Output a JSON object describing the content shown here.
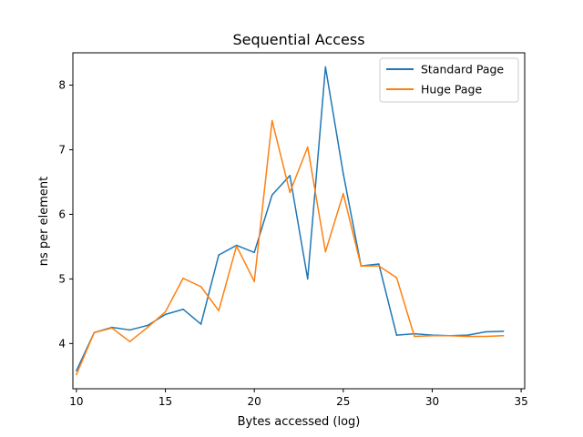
{
  "chart_data": {
    "type": "line",
    "title": "Sequential Access",
    "xlabel": "Bytes accessed (log)",
    "ylabel": "ns per element",
    "xlim": [
      9.8,
      35.2
    ],
    "ylim": [
      3.3,
      8.5
    ],
    "xticks": [
      10,
      15,
      20,
      25,
      30,
      35
    ],
    "yticks": [
      4,
      5,
      6,
      7,
      8
    ],
    "grid": false,
    "legend_position": "top-right",
    "x": [
      10,
      11,
      12,
      13,
      14,
      15,
      16,
      17,
      18,
      19,
      20,
      21,
      22,
      23,
      24,
      25,
      26,
      27,
      28,
      29,
      30,
      31,
      32,
      33,
      34
    ],
    "series": [
      {
        "name": "Standard Page",
        "color": "#1f77b4",
        "values": [
          3.58,
          4.17,
          4.25,
          4.21,
          4.28,
          4.45,
          4.53,
          4.3,
          5.37,
          5.52,
          5.41,
          6.3,
          6.6,
          5.0,
          8.28,
          6.63,
          5.2,
          5.23,
          4.13,
          4.15,
          4.13,
          4.12,
          4.13,
          4.18,
          4.19
        ]
      },
      {
        "name": "Huge Page",
        "color": "#ff7f0e",
        "values": [
          3.52,
          4.17,
          4.24,
          4.03,
          4.25,
          4.49,
          5.01,
          4.88,
          4.51,
          5.51,
          4.96,
          7.45,
          6.34,
          7.04,
          5.42,
          6.32,
          5.2,
          5.2,
          5.02,
          4.11,
          4.12,
          4.12,
          4.11,
          4.11,
          4.12
        ]
      }
    ]
  }
}
